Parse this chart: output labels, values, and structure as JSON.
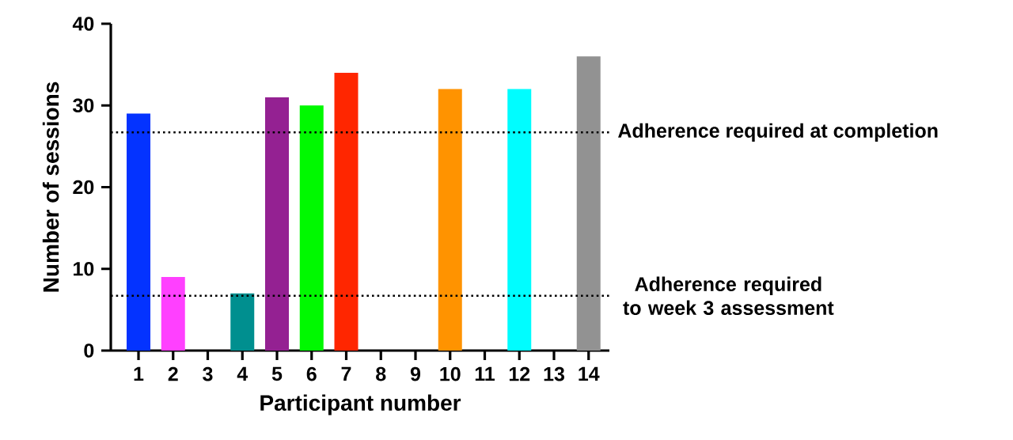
{
  "chart_data": {
    "type": "bar",
    "xlabel": "Participant number",
    "ylabel": "Number of sessions",
    "categories": [
      "1",
      "2",
      "3",
      "4",
      "5",
      "6",
      "7",
      "8",
      "9",
      "10",
      "11",
      "12",
      "13",
      "14"
    ],
    "values": [
      29,
      9,
      0,
      7,
      31,
      30,
      34,
      0,
      0,
      32,
      0,
      32,
      0,
      36
    ],
    "colors": [
      "#0433ff",
      "#ff40ff",
      "#000000",
      "#008f8f",
      "#942192",
      "#00f900",
      "#ff2600",
      "#000000",
      "#000000",
      "#ff9300",
      "#000000",
      "#00fdff",
      "#000000",
      "#929292"
    ],
    "ylim": [
      0,
      40
    ],
    "yticks": [
      0,
      10,
      20,
      30,
      40
    ],
    "ref_lines": [
      {
        "axis": "y",
        "value": 26.7,
        "label": "Adherence required at completion",
        "line_style": "dotted",
        "color": "#000000"
      },
      {
        "axis": "y",
        "value": 6.7,
        "label": "Adherence required to week 3 assessment",
        "line_style": "dotted",
        "color": "#000000"
      }
    ]
  }
}
